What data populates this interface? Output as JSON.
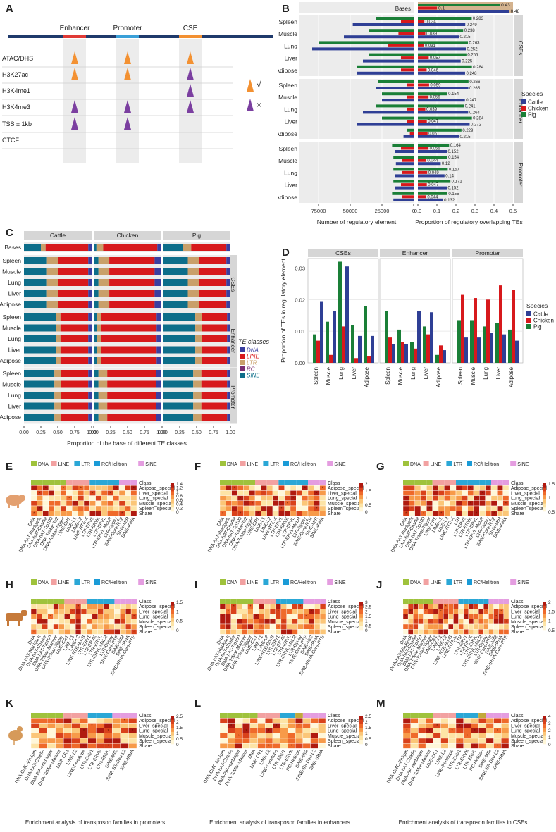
{
  "panels": {
    "A": "A",
    "B": "B",
    "C": "C",
    "D": "D",
    "E": "E",
    "F": "F",
    "G": "G",
    "H": "H",
    "I": "I",
    "J": "J",
    "K": "K",
    "L": "L",
    "M": "M"
  },
  "panelA": {
    "columns": [
      "Enhancer",
      "Promoter",
      "CSE"
    ],
    "rows": [
      "ATAC/DHS",
      "H3K27ac",
      "H3K4me1",
      "H3K4me3",
      "TSS ± 1kb",
      "CTCF"
    ],
    "marks": [
      [
        "orange",
        "orange",
        "orange"
      ],
      [
        "orange",
        "orange",
        "purple"
      ],
      [
        "",
        "",
        "purple"
      ],
      [
        "purple",
        "purple",
        "purple"
      ],
      [
        "purple",
        "purple",
        ""
      ],
      [
        "",
        "",
        ""
      ]
    ],
    "legend": [
      {
        "color": "#f39132",
        "symbol": "√"
      },
      {
        "color": "#7b3fa0",
        "symbol": "×"
      }
    ],
    "colors": {
      "orange": "#f39132",
      "purple": "#7b3fa0",
      "enh": "#e03a36",
      "prom": "#3aa0d8",
      "cse": "#f39132",
      "track": "#1f3a6b"
    }
  },
  "species": [
    "Cattle",
    "Chicken",
    "Pig"
  ],
  "species_colors": {
    "Cattle": "#2f3f95",
    "Chicken": "#d7191c",
    "Pig": "#1a7f37"
  },
  "panelB": {
    "xlabel_left": "Number of regulatory element",
    "xlabel_right": "Proportion of regulatory overlapping TEs",
    "ticks_left": [
      "75000",
      "50000",
      "25000",
      "0"
    ],
    "ticks_right": [
      "0.0",
      "0.1",
      "0.2",
      "0.3",
      "0.4",
      "0.5"
    ],
    "legend_title": "Species",
    "bases_label": "Bases"
  },
  "chart_data": [
    {
      "type": "bar",
      "panel": "B",
      "bases": {
        "Cattle": 0.48,
        "Chicken": 0.1,
        "Pig": 0.43,
        "labels": {
          "Cattle": "0.48",
          "Chicken": "0.1",
          "Pig": "0.43"
        }
      },
      "groups": [
        {
          "name": "CSEs",
          "tissues": [
            {
              "tissue": "Spleen",
              "count": {
                "Cattle": 48000,
                "Chicken": 10000,
                "Pig": 30000
              },
              "prop": {
                "Cattle": 0.249,
                "Chicken": 0.034,
                "Pig": 0.283
              },
              "labels": {
                "Cattle": "0.249",
                "Chicken": "0.034",
                "Pig": "0.283"
              }
            },
            {
              "tissue": "Muscle",
              "count": {
                "Cattle": 55000,
                "Chicken": 12000,
                "Pig": 35000
              },
              "prop": {
                "Cattle": 0.215,
                "Chicken": 0.039,
                "Pig": 0.238
              },
              "labels": {
                "Cattle": "0.215",
                "Chicken": "0.039",
                "Pig": "0.238"
              }
            },
            {
              "tissue": "Lung",
              "count": {
                "Cattle": 80000,
                "Chicken": 20000,
                "Pig": 75000
              },
              "prop": {
                "Cattle": 0.252,
                "Chicken": 0.031,
                "Pig": 0.263
              },
              "labels": {
                "Cattle": "0.252",
                "Chicken": "0.031",
                "Pig": "0.263"
              }
            },
            {
              "tissue": "Liver",
              "count": {
                "Cattle": 40000,
                "Chicken": 10000,
                "Pig": 35000
              },
              "prop": {
                "Cattle": 0.225,
                "Chicken": 0.057,
                "Pig": 0.255
              },
              "labels": {
                "Cattle": "0.225",
                "Chicken": "0.057",
                "Pig": "0.255"
              }
            },
            {
              "tissue": "Adipose",
              "count": {
                "Cattle": 45000,
                "Chicken": 10000,
                "Pig": 45000
              },
              "prop": {
                "Cattle": 0.248,
                "Chicken": 0.046,
                "Pig": 0.284
              },
              "labels": {
                "Cattle": "0.248",
                "Chicken": "0.046",
                "Pig": "0.284"
              }
            }
          ]
        },
        {
          "name": "Enhancer",
          "tissues": [
            {
              "tissue": "Spleen",
              "count": {
                "Cattle": 30000,
                "Chicken": 5000,
                "Pig": 28000
              },
              "prop": {
                "Cattle": 0.265,
                "Chicken": 0.059,
                "Pig": 0.266
              },
              "labels": {
                "Cattle": "0.265",
                "Chicken": "0.059",
                "Pig": "0.266"
              }
            },
            {
              "tissue": "Muscle",
              "count": {
                "Cattle": 25000,
                "Chicken": 5000,
                "Pig": 25000
              },
              "prop": {
                "Cattle": 0.247,
                "Chicken": 0.056,
                "Pig": 0.154
              },
              "labels": {
                "Cattle": "0.247",
                "Chicken": "0.056",
                "Pig": "0.154"
              }
            },
            {
              "tissue": "Lung",
              "count": {
                "Cattle": 40000,
                "Chicken": 5000,
                "Pig": 30000
              },
              "prop": {
                "Cattle": 0.264,
                "Chicken": 0.039,
                "Pig": 0.241
              },
              "labels": {
                "Cattle": "0.264",
                "Chicken": "0.039",
                "Pig": "0.241"
              }
            },
            {
              "tissue": "Liver",
              "count": {
                "Cattle": 45000,
                "Chicken": 5000,
                "Pig": 25000
              },
              "prop": {
                "Cattle": 0.272,
                "Chicken": 0.047,
                "Pig": 0.284
              },
              "labels": {
                "Cattle": "0.272",
                "Chicken": "0.047",
                "Pig": "0.284"
              }
            },
            {
              "tissue": "Adipose",
              "count": {
                "Cattle": 8000,
                "Chicken": 3000,
                "Pig": 5000
              },
              "prop": {
                "Cattle": 0.215,
                "Chicken": 0.051,
                "Pig": 0.229
              },
              "labels": {
                "Cattle": "0.215",
                "Chicken": "0.051",
                "Pig": "0.229"
              }
            }
          ]
        },
        {
          "name": "Promoter",
          "tissues": [
            {
              "tissue": "Spleen",
              "count": {
                "Cattle": 15000,
                "Chicken": 10000,
                "Pig": 17000
              },
              "prop": {
                "Cattle": 0.152,
                "Chicken": 0.056,
                "Pig": 0.164
              },
              "labels": {
                "Cattle": "0.152",
                "Chicken": "0.056",
                "Pig": "0.164"
              }
            },
            {
              "tissue": "Muscle",
              "count": {
                "Cattle": 14000,
                "Chicken": 9000,
                "Pig": 16000
              },
              "prop": {
                "Cattle": 0.12,
                "Chicken": 0.044,
                "Pig": 0.154
              },
              "labels": {
                "Cattle": "0.12",
                "Chicken": "0.044",
                "Pig": "0.154"
              }
            },
            {
              "tissue": "Lung",
              "count": {
                "Cattle": 15000,
                "Chicken": 9000,
                "Pig": 16000
              },
              "prop": {
                "Cattle": 0.14,
                "Chicken": 0.049,
                "Pig": 0.157
              },
              "labels": {
                "Cattle": "0.14",
                "Chicken": "0.049",
                "Pig": "0.157"
              }
            },
            {
              "tissue": "Liver",
              "count": {
                "Cattle": 15000,
                "Chicken": 10000,
                "Pig": 16000
              },
              "prop": {
                "Cattle": 0.152,
                "Chicken": 0.047,
                "Pig": 0.171
              },
              "labels": {
                "Cattle": "0.152",
                "Chicken": "0.047",
                "Pig": "0.171"
              }
            },
            {
              "tissue": "Adipose",
              "count": {
                "Cattle": 16000,
                "Chicken": 9000,
                "Pig": 17000
              },
              "prop": {
                "Cattle": 0.132,
                "Chicken": 0.044,
                "Pig": 0.155
              },
              "labels": {
                "Cattle": "0.132",
                "Chicken": "0.044",
                "Pig": "0.155"
              }
            }
          ]
        }
      ],
      "xlim_left": [
        0,
        90000
      ],
      "xlim_right": [
        0,
        0.5
      ]
    },
    {
      "type": "bar",
      "panel": "C",
      "stacked": true,
      "xlabel": "Proportion of the base of different TE classes",
      "ticks": [
        "0.00",
        "0.25",
        "0.50",
        "0.75",
        "1.00"
      ],
      "facets": [
        "Cattle",
        "Chicken",
        "Pig"
      ],
      "row_groups": [
        "CSEs",
        "Enhancer",
        "Promoter"
      ],
      "rows": [
        "Spleen",
        "Muscle",
        "Lung",
        "Liver",
        "Adipose"
      ],
      "bases_label": "Bases",
      "legend_title": "TE classes",
      "classes": [
        "DNA",
        "LINE",
        "LTR",
        "RC",
        "SINE"
      ],
      "class_colors": {
        "DNA": "#3a3ea0",
        "LINE": "#d7191c",
        "LTR": "#c9a06a",
        "RC": "#7a2f72",
        "SINE": "#0d6e8a"
      },
      "order": [
        "SINE",
        "LTR",
        "LINE",
        "DNA"
      ],
      "profiles": {
        "Cattle": {
          "bases": [
            0.25,
            0.07,
            0.63,
            0.05
          ],
          "CSEs": [
            0.33,
            0.17,
            0.45,
            0.05
          ],
          "Enhancer": [
            0.47,
            0.07,
            0.41,
            0.05
          ],
          "Promoter": [
            0.45,
            0.1,
            0.4,
            0.05
          ]
        },
        "Chicken": {
          "bases": [
            0.04,
            0.1,
            0.8,
            0.06
          ],
          "CSEs": [
            0.07,
            0.16,
            0.67,
            0.1
          ],
          "Enhancer": [
            0.05,
            0.06,
            0.82,
            0.07
          ],
          "Promoter": [
            0.07,
            0.13,
            0.72,
            0.08
          ]
        },
        "Pig": {
          "bases": [
            0.3,
            0.12,
            0.52,
            0.06
          ],
          "CSEs": [
            0.37,
            0.17,
            0.4,
            0.06
          ],
          "Enhancer": [
            0.48,
            0.1,
            0.37,
            0.05
          ],
          "Promoter": [
            0.45,
            0.12,
            0.38,
            0.05
          ]
        }
      }
    },
    {
      "type": "bar",
      "panel": "D",
      "ylabel": "Proportion of TEs in regulatory element",
      "facets": [
        "CSEs",
        "Enhancer",
        "Promoter"
      ],
      "categories": [
        "Spleen",
        "Muscle",
        "Lung",
        "Liver",
        "Adipose"
      ],
      "yticks": [
        "0.00",
        "0.01",
        "0.02",
        "0.03"
      ],
      "ylim": [
        0,
        0.033
      ],
      "legend_title": "Species",
      "values": {
        "CSEs": {
          "Pig": [
            0.009,
            0.013,
            0.032,
            0.012,
            0.018
          ],
          "Chicken": [
            0.007,
            0.0025,
            0.0115,
            0.0015,
            0.002
          ],
          "Cattle": [
            0.0195,
            0.0165,
            0.0305,
            0.0085,
            0.0085
          ]
        },
        "Enhancer": {
          "Pig": [
            0.0165,
            0.0105,
            0.0065,
            0.0115,
            0.0025
          ],
          "Chicken": [
            0.008,
            0.0065,
            0.0045,
            0.009,
            0.0055
          ],
          "Cattle": [
            0.006,
            0.006,
            0.0165,
            0.016,
            0.004
          ]
        },
        "Promoter": {
          "Pig": [
            0.0135,
            0.0135,
            0.0115,
            0.0125,
            0.0105
          ],
          "Chicken": [
            0.0215,
            0.0205,
            0.02,
            0.0245,
            0.023
          ],
          "Cattle": [
            0.008,
            0.008,
            0.0095,
            0.009,
            0.007
          ]
        }
      }
    },
    {
      "type": "heatmap",
      "panels": [
        "E",
        "F",
        "G",
        "H",
        "I",
        "J",
        "K",
        "L",
        "M"
      ],
      "row_labels": [
        "Class",
        "Adipose_special",
        "Liver_special",
        "Lung_special",
        "Muscle_special",
        "Spleen_special",
        "Share"
      ],
      "row_labels_GJ": [
        "Class",
        "Adipose_special",
        "Liver_special",
        "Lung_special",
        "Muscle_special",
        "Spleen_special",
        "Share"
      ],
      "class_legend": [
        {
          "name": "DNA",
          "color": "#9fc23c"
        },
        {
          "name": "LINE",
          "color": "#f2a1a1"
        },
        {
          "name": "LTR",
          "color": "#2aa7d6"
        },
        {
          "name": "RC/Helitron",
          "color": "#1a9bd7"
        },
        {
          "name": "SINE",
          "color": "#e49de0"
        }
      ],
      "scales": {
        "E": [
          "1.4",
          "1.2",
          "1",
          "0.8",
          "0.6",
          "0.4",
          "0.2",
          "0"
        ],
        "F": [
          "2",
          "1.5",
          "1",
          "0.5",
          "0"
        ],
        "G": [
          "1.5",
          "1",
          "0.5"
        ],
        "H": [
          "1.5",
          "1",
          "0.5",
          "0"
        ],
        "I": [
          "3",
          "2.5",
          "2",
          "1.5",
          "1",
          "0.5",
          "0"
        ],
        "J": [
          "2",
          "1.5",
          "1",
          "0.5"
        ],
        "K": [
          "2.5",
          "2",
          "1.5",
          "1",
          "0.5",
          "0"
        ],
        "L": [
          "2.5",
          "2",
          "1.5",
          "1",
          "0.5",
          "0"
        ],
        "M": [
          "4",
          "3",
          "2",
          "1",
          "0"
        ]
      },
      "cols": {
        "E": [
          "DNA",
          "DNA-hAT-Blackjack",
          "DNA-hAT-Charlie",
          "DNA-hAT-Tip100",
          "DNA-TcMar-Tc2",
          "DNA-TcMar-Tigger",
          "LINE-CR1",
          "LINE-L1",
          "LINE-L2",
          "LINE-RTE-X",
          "LTR-ERV1",
          "LTR-ERVK",
          "LTR-ERVL",
          "LTR-ERVL-MaLR",
          "LTR-Gypsy",
          "SINE-Core-RTE",
          "SINE-MIR",
          "SINE-tRNA"
        ],
        "F": [
          "DNA",
          "DNA-hAT-Blackjack",
          "DNA-hAT-Charlie",
          "DNA-hAT-Tip100",
          "DNA-TcMar-Tc2",
          "DNA-TcMar-Tigger",
          "LINE-CR1",
          "LINE-L1",
          "LINE-L2",
          "LINE-RTE-X",
          "LTR-ERV1",
          "LTR-ERVK",
          "LTR-ERVL",
          "LTR-ERVL-MaLR",
          "LTR-Gypsy",
          "SINE-Core-RTE",
          "SINE-MIR",
          "SINE-tRNA"
        ],
        "G": [
          "DNA",
          "DNA-hAT-Blackjack",
          "DNA-hAT-Charlie",
          "DNA-hAT-Tip100",
          "DNA-TcMar-Tigger",
          "LINE-CR1",
          "LINE-L1",
          "LINE-L2",
          "LINE-RTE-X",
          "LTR",
          "LTR-ERV1",
          "LTR-ERVK",
          "LTR-ERVL",
          "LTR-ERVL-MaLR",
          "LTR-Gypsy",
          "SINE-Core-RTE",
          "SINE-MIR",
          "SINE-tRNA"
        ],
        "H": [
          "DNA",
          "DNA-hAT-Blackjack",
          "DNA-hAT-Charlie",
          "DNA-hAT-Tip100",
          "DNA-TcMar-Mariner",
          "DNA-TcMar-Tigger",
          "LINE-CR1",
          "LINE-L1",
          "LINE-L2",
          "LINE-RTE-BovB",
          "LTR-ERV1",
          "LTR-ERVK",
          "LTR-ERVL",
          "LTR-ERVL-MaLR",
          "LTR-Gypsy",
          "SINE-Core-RTE",
          "SINE-MIR",
          "SINE-tRNA",
          "SINE-tRNA-Core-RTE"
        ],
        "I": [
          "DNA",
          "DNA-hAT-Blackjack",
          "DNA-hAT-Charlie",
          "DNA-hAT-Tip100",
          "DNA-TcMar-Mariner",
          "DNA-TcMar-Tigger",
          "LINE-CR1",
          "LINE-L1",
          "LINE-L2",
          "LINE-RTE-BovB",
          "LTR-ERV1",
          "LTR-ERVK",
          "LTR-ERVL",
          "LTR-ERVL-MaLR",
          "LTR-Gypsy",
          "SINE-Core-RTE",
          "SINE-MIR",
          "SINE-tRNA",
          "SINE-tRNA-Core-RTE"
        ],
        "J": [
          "DNA",
          "DNA-hAT-Blackjack",
          "DNA-hAT-Charlie",
          "DNA-hAT-Tip100",
          "DNA-TcMar-Mariner",
          "DNA-TcMar-Tigger",
          "LINE-CR1",
          "LINE-L1",
          "LINE-L2",
          "LINE-RTE-BovB",
          "LINE-RTE-X",
          "LTR",
          "LTR-ERV1",
          "LTR-ERVK",
          "LTR-ERVL",
          "LTR-ERVL-MaLR",
          "LTR-Gypsy",
          "SINE-Core-RTE",
          "SINE-MIR",
          "SINE-tRNA",
          "SINE-tRNA-Core-RTE"
        ],
        "K": [
          "DNA-CMC-EnSpm",
          "DNA-hAT-Charlie",
          "DNA-PIF-Harbinger",
          "DNA-TcMar-Mariner",
          "LINE-CR1",
          "LINE-L2",
          "LINE-Penelope",
          "LTR-ERV1",
          "LTR-ERVK",
          "LTR-ERVL",
          "SINE-MIR",
          "SINE-SS-Deu-L2",
          "SINE-tRNA"
        ],
        "L": [
          "DNA-CMC-EnSpm",
          "DNA-hAT-Charlie",
          "DNA-PIF-Harbinger",
          "DNA-TcMar-Mariner",
          "DNA",
          "LINE-CR1",
          "LINE-L2",
          "LINE-Penelope",
          "LTR-ERV1",
          "LTR-ERVK",
          "RC-Helitron",
          "SINE-MIR",
          "SINE-SS-Deu-L2",
          "SINE-tRNA"
        ],
        "M": [
          "DNA-CMC-EnSpm",
          "DNA-hAT-Charlie",
          "DNA-PIF-Harbinger",
          "DNA-TcMar-Mariner",
          "LINE-CR1",
          "LINE-L2",
          "LINE-Penelope",
          "LTR-ERV1",
          "LTR-ERVK",
          "LTR-ERVL",
          "RC-Helitron",
          "SINE-MIR",
          "SINE-SS-Deu-L2",
          "SINE-tRNA"
        ]
      },
      "captions": {
        "K": "Enrichment analysis of transposon families in promoters",
        "L": "Enrichment analysis of transposon families in enhancers",
        "M": "Enrichment analysis of transposon families in CSEs"
      }
    }
  ]
}
